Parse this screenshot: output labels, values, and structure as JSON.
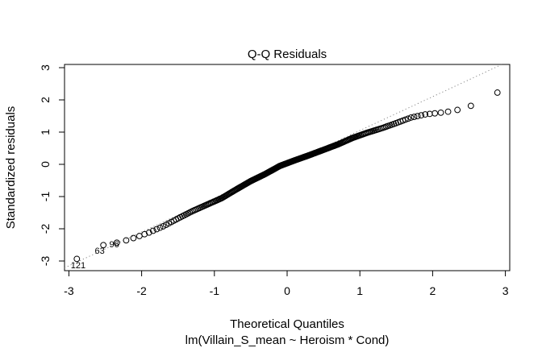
{
  "chart_data": {
    "type": "scatter",
    "title": "Q-Q Residuals",
    "xlabel": "Theoretical Quantiles",
    "subtitle": "lm(Villain_S_mean ~ Heroism * Cond)",
    "ylabel": "Standardized residuals",
    "xlim": [
      -3.06,
      3.06
    ],
    "ylim": [
      -3.3,
      3.1
    ],
    "xticks": [
      -3,
      -2,
      -1,
      0,
      1,
      2,
      3
    ],
    "yticks": [
      -3,
      -2,
      -1,
      0,
      1,
      2,
      3
    ],
    "grid": false,
    "reference_line": {
      "style": "dotted",
      "intercept": 0.0,
      "slope": 1.05
    },
    "point_labels": [
      {
        "label": "121",
        "x": -3.03,
        "y": -3.12
      },
      {
        "label": "63",
        "x": -2.7,
        "y": -2.68
      },
      {
        "label": "96",
        "x": -2.5,
        "y": -2.48
      }
    ],
    "quantile_curve": [
      [
        -3.03,
        -3.12
      ],
      [
        -2.7,
        -2.68
      ],
      [
        -2.5,
        -2.48
      ],
      [
        -2.3,
        -2.42
      ],
      [
        -2.1,
        -2.28
      ],
      [
        -1.9,
        -2.12
      ],
      [
        -1.7,
        -1.92
      ],
      [
        -1.5,
        -1.68
      ],
      [
        -1.3,
        -1.45
      ],
      [
        -1.1,
        -1.25
      ],
      [
        -0.9,
        -1.05
      ],
      [
        -0.7,
        -0.78
      ],
      [
        -0.5,
        -0.52
      ],
      [
        -0.3,
        -0.3
      ],
      [
        -0.1,
        -0.05
      ],
      [
        0.1,
        0.12
      ],
      [
        0.3,
        0.28
      ],
      [
        0.5,
        0.45
      ],
      [
        0.7,
        0.62
      ],
      [
        0.9,
        0.82
      ],
      [
        1.1,
        0.98
      ],
      [
        1.3,
        1.12
      ],
      [
        1.5,
        1.28
      ],
      [
        1.7,
        1.45
      ],
      [
        1.9,
        1.55
      ],
      [
        2.1,
        1.6
      ],
      [
        2.3,
        1.66
      ],
      [
        2.5,
        1.8
      ],
      [
        2.7,
        1.92
      ],
      [
        3.03,
        2.45
      ]
    ],
    "n_points": 260
  }
}
